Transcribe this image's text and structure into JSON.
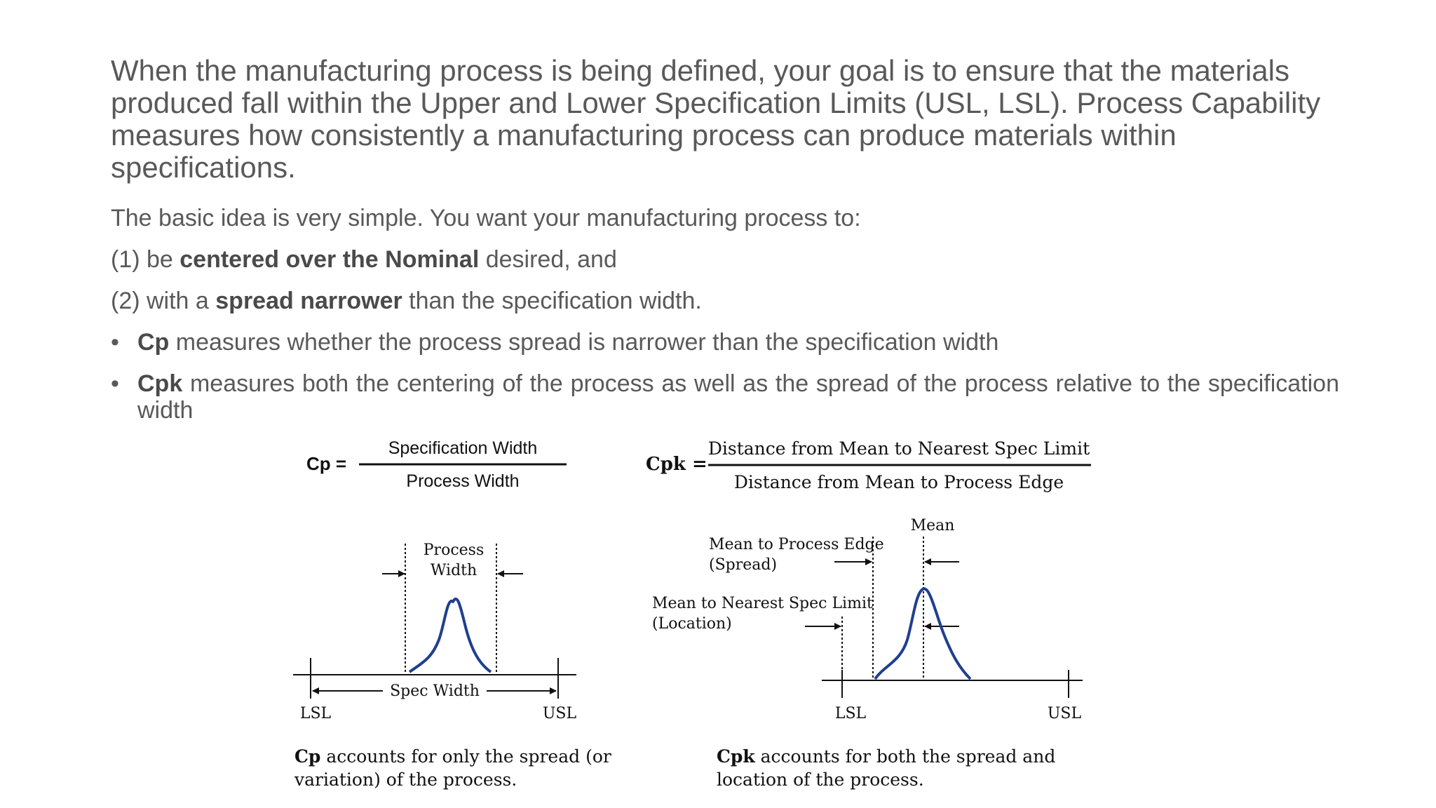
{
  "intro": "When the manufacturing process is being defined, your goal is to ensure that the materials produced fall within the Upper and Lower Specification Limits (USL, LSL). Process Capability measures how consistently a manufacturing process can produce materials within specifications.",
  "para1": "The basic idea is very simple. You want your manufacturing process to:",
  "item1": {
    "prefix": "(1) be ",
    "bold": "centered over the Nominal",
    "suffix": " desired, and"
  },
  "item2": {
    "prefix": "(2) with a ",
    "bold": "spread narrower",
    "suffix": " than the specification width."
  },
  "bullets": [
    {
      "bold": "Cp",
      "text": " measures whether the process spread is narrower than the specification width"
    },
    {
      "bold": "Cpk",
      "text": " measures both the centering of the process as well as the spread of the process relative to the specification width"
    }
  ],
  "cp_diagram": {
    "lhs": "Cp =",
    "numerator": "Specification Width",
    "denominator": "Process Width",
    "process_width_label_1": "Process",
    "process_width_label_2": "Width",
    "spec_width_label": "Spec Width",
    "lsl": "LSL",
    "usl": "USL",
    "caption_bold": "Cp",
    "caption_line1": " accounts for only the spread (or",
    "caption_line2": "variation) of the process."
  },
  "cpk_diagram": {
    "lhs": "Cpk =",
    "numerator": "Distance from Mean to Nearest Spec Limit",
    "denominator": "Distance from Mean to Process Edge",
    "mean_label": "Mean",
    "spread_label_1": "Mean to Process Edge",
    "spread_label_2": "(Spread)",
    "location_label_1": "Mean to Nearest Spec Limit",
    "location_label_2": "(Location)",
    "lsl": "LSL",
    "usl": "USL",
    "caption_bold": "Cpk",
    "caption_line1": " accounts for both the spread and",
    "caption_line2": "location of the process."
  },
  "colors": {
    "text": "#595959",
    "curve": "#1f3f8f",
    "lines": "#111111"
  }
}
